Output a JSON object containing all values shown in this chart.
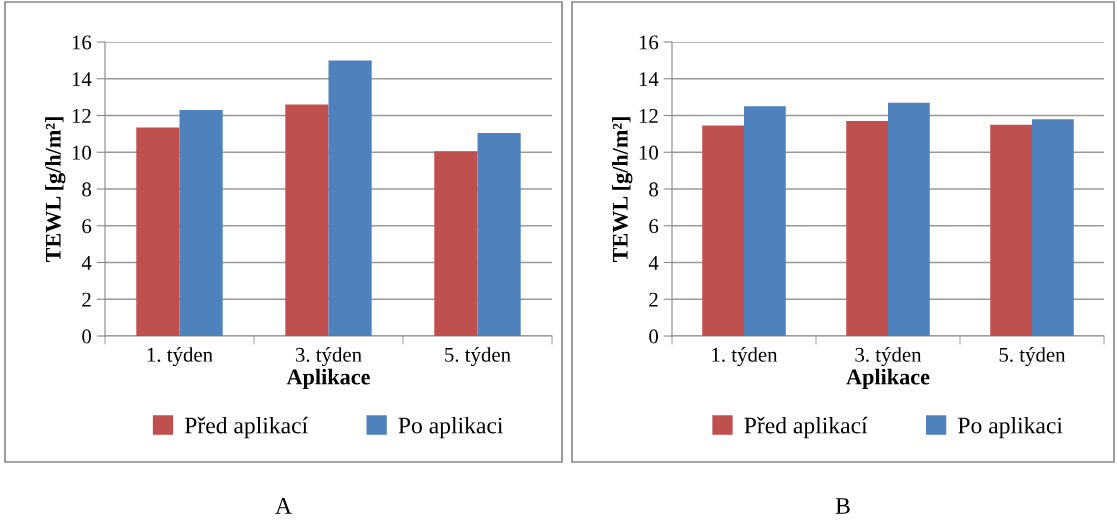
{
  "chart_data": [
    {
      "type": "bar",
      "xlabel": "Aplikace",
      "ylabel": "TEWL [g/h/m²]",
      "categories": [
        "1. týden",
        "3. týden",
        "5. týden"
      ],
      "series": [
        {
          "name": "Před aplikací",
          "color": "#c0504d",
          "values": [
            11.35,
            12.6,
            10.05
          ]
        },
        {
          "name": "Po aplikaci",
          "color": "#4f81bd",
          "values": [
            12.3,
            15.0,
            11.05
          ]
        }
      ],
      "ylim": [
        0,
        16
      ],
      "yticks": [
        0,
        2,
        4,
        6,
        8,
        10,
        12,
        14,
        16
      ],
      "grid": "y",
      "legend": "bottom",
      "annotations": [
        "A"
      ]
    },
    {
      "type": "bar",
      "xlabel": "Aplikace",
      "ylabel": "TEWL [g/h/m²]",
      "categories": [
        "1. týden",
        "3. týden",
        "5. týden"
      ],
      "series": [
        {
          "name": "Před aplikací",
          "color": "#c0504d",
          "values": [
            11.45,
            11.7,
            11.5
          ]
        },
        {
          "name": "Po aplikaci",
          "color": "#4f81bd",
          "values": [
            12.5,
            12.7,
            11.8
          ]
        }
      ],
      "ylim": [
        0,
        16
      ],
      "yticks": [
        0,
        2,
        4,
        6,
        8,
        10,
        12,
        14,
        16
      ],
      "grid": "y",
      "legend": "bottom",
      "annotations": [
        "B"
      ]
    }
  ]
}
